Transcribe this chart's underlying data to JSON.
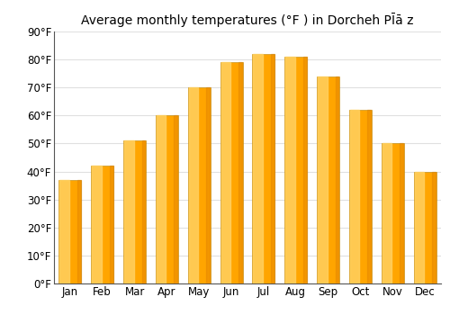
{
  "title": "Average monthly temperatures (°F ) in Dorcheh PĪā̇ z",
  "months": [
    "Jan",
    "Feb",
    "Mar",
    "Apr",
    "May",
    "Jun",
    "Jul",
    "Aug",
    "Sep",
    "Oct",
    "Nov",
    "Dec"
  ],
  "values": [
    37,
    42,
    51,
    60,
    70,
    79,
    82,
    81,
    74,
    62,
    50,
    40
  ],
  "bar_color_main": "#FFA500",
  "bar_color_light": "#FFD060",
  "bar_color_dark": "#E08000",
  "ylim": [
    0,
    90
  ],
  "yticks": [
    0,
    10,
    20,
    30,
    40,
    50,
    60,
    70,
    80,
    90
  ],
  "ytick_labels": [
    "0°F",
    "10°F",
    "20°F",
    "30°F",
    "40°F",
    "50°F",
    "60°F",
    "70°F",
    "80°F",
    "90°F"
  ],
  "background_color": "#ffffff",
  "grid_color": "#e0e0e0",
  "title_fontsize": 10,
  "tick_fontsize": 8.5
}
